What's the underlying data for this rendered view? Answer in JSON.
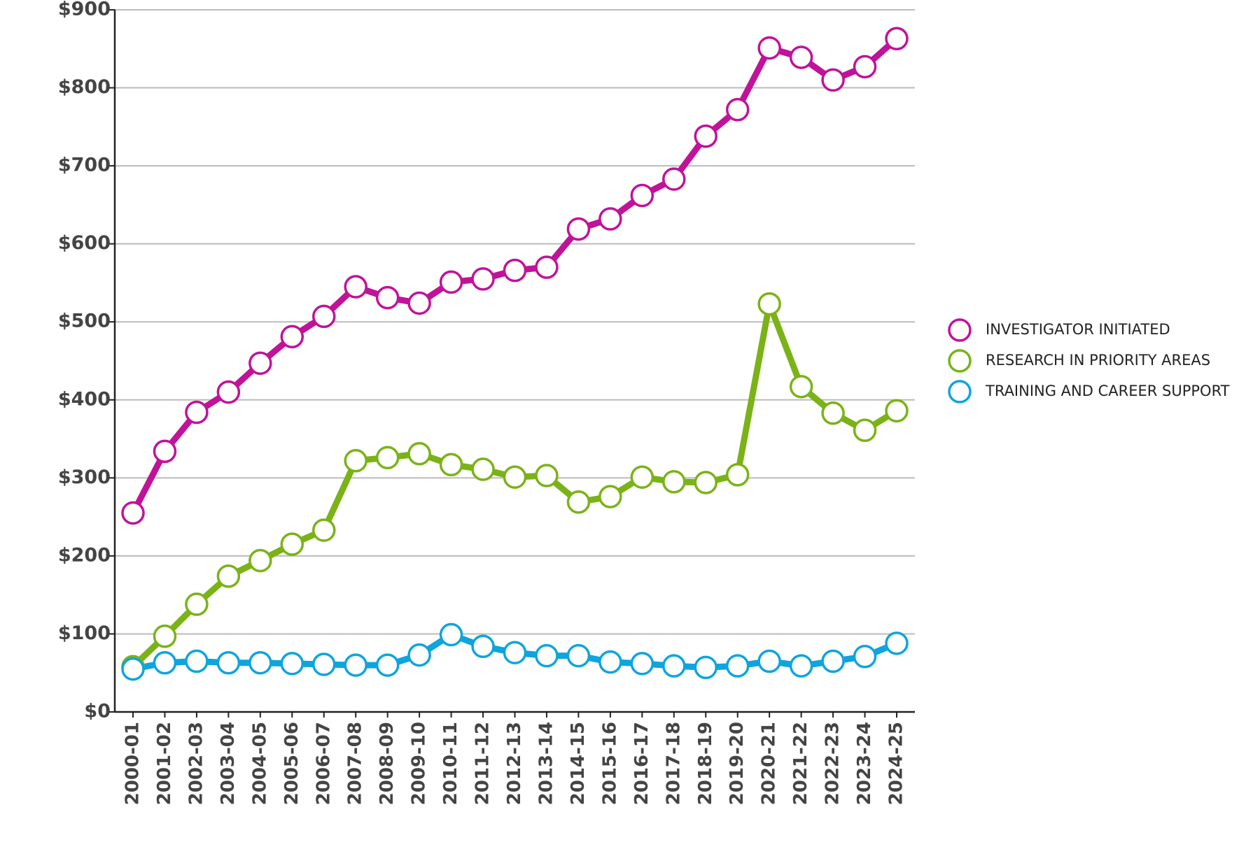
{
  "chart_data": {
    "type": "line",
    "categories": [
      "2000-01",
      "2001-02",
      "2002-03",
      "2003-04",
      "2004-05",
      "2005-06",
      "2006-07",
      "2007-08",
      "2008-09",
      "2009-10",
      "2010-11",
      "2011-12",
      "2012-13",
      "2013-14",
      "2014-15",
      "2015-16",
      "2016-17",
      "2017-18",
      "2018-19",
      "2019-20",
      "2020-21",
      "2021-22",
      "2022-23",
      "2023-24",
      "2024-25"
    ],
    "series": [
      {
        "name": "INVESTIGATOR INITIATED",
        "color": "#c0139a",
        "values": [
          255,
          334,
          384,
          410,
          447,
          481,
          507,
          545,
          531,
          524,
          551,
          555,
          566,
          570,
          619,
          632,
          662,
          683,
          738,
          772,
          851,
          839,
          810,
          827,
          863
        ]
      },
      {
        "name": "RESEARCH IN PRIORITY AREAS",
        "color": "#7ab317",
        "values": [
          58,
          97,
          138,
          174,
          194,
          215,
          233,
          322,
          326,
          331,
          317,
          311,
          301,
          303,
          269,
          276,
          301,
          295,
          294,
          304,
          523,
          417,
          383,
          361,
          386
        ]
      },
      {
        "name": "TRAINING AND CAREER SUPPORT",
        "color": "#0ea5dc",
        "values": [
          55,
          63,
          65,
          63,
          63,
          62,
          61,
          60,
          60,
          73,
          99,
          84,
          76,
          72,
          72,
          64,
          62,
          59,
          57,
          59,
          65,
          59,
          65,
          71,
          88
        ]
      }
    ],
    "ylim": [
      0,
      900
    ],
    "yticks": [
      {
        "value": 0,
        "label": "$0"
      },
      {
        "value": 100,
        "label": "$100"
      },
      {
        "value": 200,
        "label": "$200"
      },
      {
        "value": 300,
        "label": "$300"
      },
      {
        "value": 400,
        "label": "$400"
      },
      {
        "value": 500,
        "label": "$500"
      },
      {
        "value": 600,
        "label": "$600"
      },
      {
        "value": 700,
        "label": "$700"
      },
      {
        "value": 800,
        "label": "$800"
      },
      {
        "value": 900,
        "label": "$900"
      }
    ],
    "grid": true,
    "legend": "right"
  }
}
